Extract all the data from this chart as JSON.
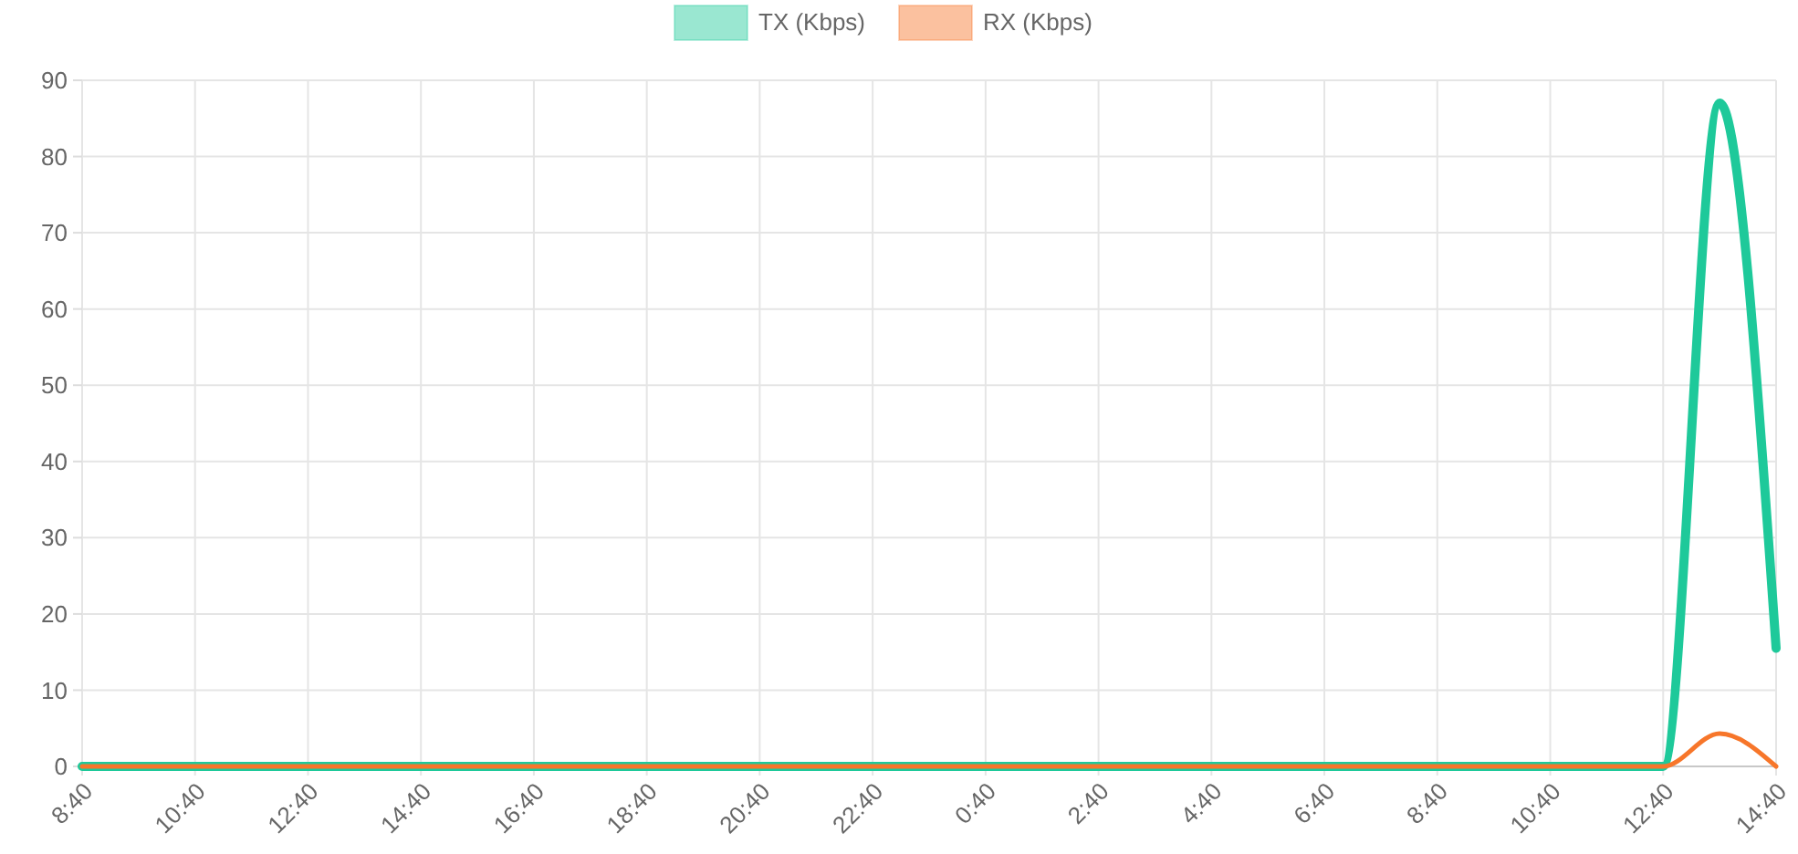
{
  "chart_data": {
    "type": "line",
    "categories": [
      "8:40",
      null,
      "10:40",
      null,
      "12:40",
      null,
      "14:40",
      null,
      "16:40",
      null,
      "18:40",
      null,
      "20:40",
      null,
      "22:40",
      null,
      "0:40",
      null,
      "2:40",
      null,
      "4:40",
      null,
      "6:40",
      null,
      "8:40",
      null,
      "10:40",
      null,
      "12:40",
      null,
      "14:40"
    ],
    "series": [
      {
        "name": "TX (Kbps)",
        "color": "#1ec99a",
        "values": [
          0,
          0,
          0,
          0,
          0,
          0,
          0,
          0,
          0,
          0,
          0,
          0,
          0,
          0,
          0,
          0,
          0,
          0,
          0,
          0,
          0,
          0,
          0,
          0,
          0,
          0,
          0,
          0,
          0,
          87,
          15.5
        ]
      },
      {
        "name": "RX (Kbps)",
        "color": "#f7762a",
        "values": [
          0,
          0,
          0,
          0,
          0,
          0,
          0,
          0,
          0,
          0,
          0,
          0,
          0,
          0,
          0,
          0,
          0,
          0,
          0,
          0,
          0,
          0,
          0,
          0,
          0,
          0,
          0,
          0,
          0,
          4.3,
          0
        ]
      }
    ],
    "ylim": [
      0,
      90
    ],
    "yticks": [
      0,
      10,
      20,
      30,
      40,
      50,
      60,
      70,
      80,
      90
    ],
    "grid": true,
    "legend": "top",
    "marker": "none",
    "line_style": "solid"
  }
}
